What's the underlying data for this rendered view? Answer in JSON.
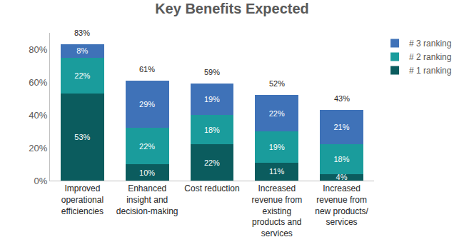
{
  "chart_data": {
    "type": "bar",
    "title": "Key Benefits Expected",
    "categories": [
      "Improved operational efficiencies",
      "Enhanced insight and decision-making",
      "Cost reduction",
      "Increased revenue from existing products and services",
      "Increased revenue from new products/ services"
    ],
    "series": [
      {
        "name": "# 1 ranking",
        "color": "#0b5c5e",
        "values": [
          53,
          10,
          22,
          11,
          4
        ],
        "value_labels": [
          "53%",
          "10%",
          "22%",
          "11%",
          "4%"
        ]
      },
      {
        "name": "# 2 ranking",
        "color": "#1a9c9c",
        "values": [
          22,
          22,
          18,
          19,
          18
        ],
        "value_labels": [
          "22%",
          "22%",
          "18%",
          "19%",
          "18%"
        ]
      },
      {
        "name": "# 3 ranking",
        "color": "#3f72b8",
        "values": [
          8,
          29,
          19,
          22,
          21
        ],
        "value_labels": [
          "8%",
          "29%",
          "19%",
          "22%",
          "21%"
        ]
      }
    ],
    "totals": [
      83,
      61,
      59,
      52,
      43
    ],
    "total_labels": [
      "83%",
      "61%",
      "59%",
      "52%",
      "43%"
    ],
    "stacked": true,
    "data_labels": true,
    "ylim": [
      0,
      90
    ],
    "yticks": [
      {
        "value": 0,
        "label": "0%"
      },
      {
        "value": 20,
        "label": "20%"
      },
      {
        "value": 40,
        "label": "40%"
      },
      {
        "value": 60,
        "label": "60%"
      },
      {
        "value": 80,
        "label": "80%"
      }
    ],
    "grid": false,
    "legend": "upper right"
  }
}
